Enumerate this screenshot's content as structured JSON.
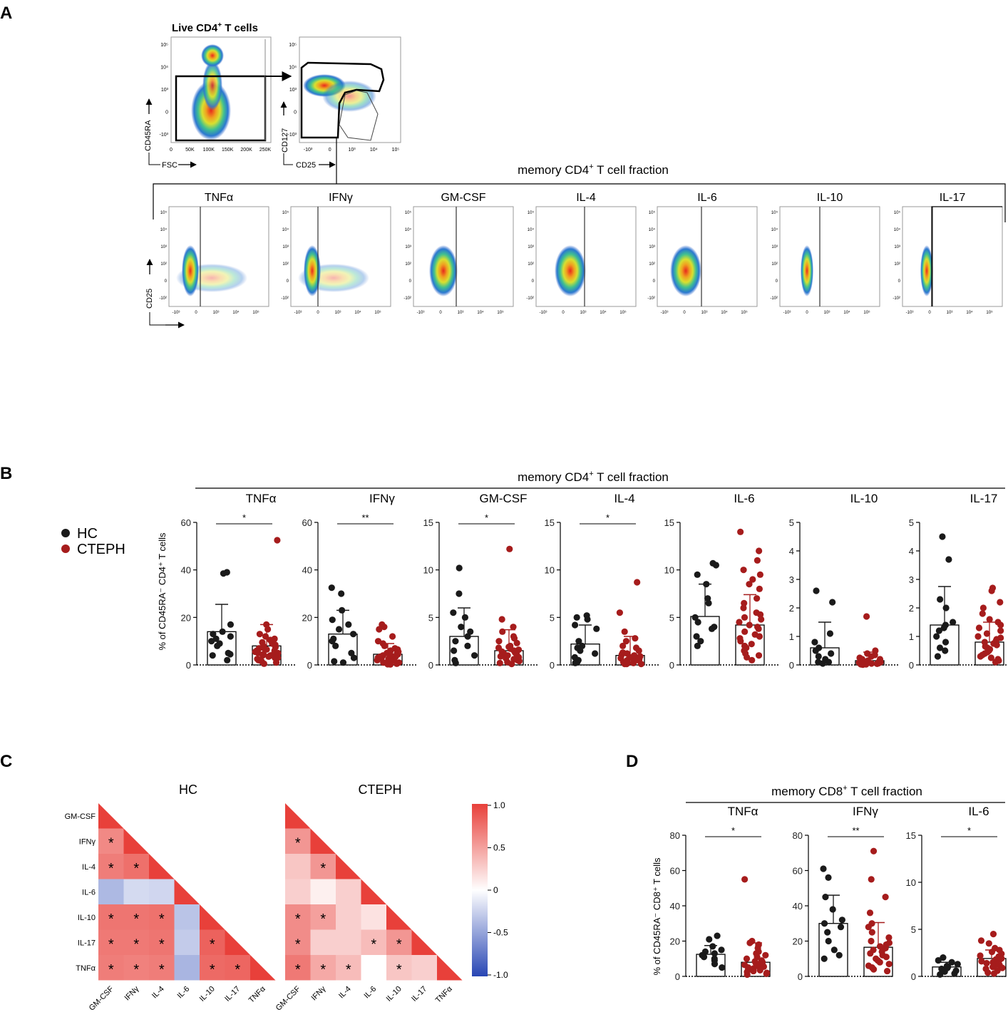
{
  "panels": {
    "A": "A",
    "B": "B",
    "C": "C",
    "D": "D"
  },
  "colors": {
    "hc": "#1a1a1a",
    "cteph": "#a61c1c",
    "heat_pos": "#e8403a",
    "heat_neg": "#2846b4",
    "heat_mid": "#ffffff"
  },
  "panelA": {
    "title": "Live CD4",
    "title_sup": "+",
    "title_suffix": " T cells",
    "plot1": {
      "y_label": "CD45RA",
      "x_label": "FSC",
      "x_ticks": [
        "0",
        "50K",
        "100K",
        "150K",
        "200K",
        "250K"
      ],
      "y_ticks": [
        "10⁵",
        "10⁴",
        "10³",
        "0",
        "-10³"
      ]
    },
    "plot2": {
      "y_label": "CD127",
      "x_label": "CD25",
      "x_ticks": [
        "-10³",
        "0",
        "10³",
        "10⁴",
        "10⁵"
      ],
      "y_ticks": [
        "10⁵",
        "10⁴",
        "10³",
        "0",
        "-10³"
      ]
    },
    "fraction_title": "memory CD4",
    "fraction_sup": "+",
    "fraction_suffix": " T cell fraction",
    "y_label": "CD25",
    "x_ticks": [
      "-10³",
      "0",
      "10³",
      "10⁴",
      "10⁵"
    ],
    "y_ticks": [
      "10⁵",
      "10⁴",
      "10³",
      "10²",
      "0",
      "-10²"
    ],
    "cytokines": [
      "TNFα",
      "IFNγ",
      "GM-CSF",
      "IL-4",
      "IL-6",
      "IL-10",
      "IL-17"
    ]
  },
  "legend": {
    "hc": "HC",
    "cteph": "CTEPH"
  },
  "panelB": {
    "fraction_title": "memory CD4",
    "fraction_sup": "+",
    "fraction_suffix": " T cell fraction",
    "y_label": "% of CD45RA⁻ CD4⁺ T cells"
  },
  "panelC": {
    "hc_title": "HC",
    "cteph_title": "CTEPH",
    "labels": [
      "GM-CSF",
      "IFNγ",
      "IL-4",
      "IL-6",
      "IL-10",
      "IL-17",
      "TNFα"
    ],
    "colorbar_ticks": [
      "1.0",
      "0.5",
      "0",
      "-0.5",
      "-1.0"
    ]
  },
  "panelD": {
    "fraction_title": "memory CD8",
    "fraction_sup": "+",
    "fraction_suffix": " T cell fraction",
    "y_label": "% of CD45RA⁻ CD8⁺ T cells"
  },
  "chart_data": [
    {
      "type": "bar",
      "panel": "B",
      "title": "memory CD4+ T cell fraction",
      "ylabel": "% of CD45RA- CD4+ T cells",
      "groups": [
        "HC",
        "CTEPH"
      ],
      "subplots": [
        {
          "title": "TNFα",
          "ylim": [
            0,
            60
          ],
          "ticks": [
            0,
            20,
            40,
            60
          ],
          "sig": "*",
          "hc": {
            "mean": 14,
            "sd": 11.5
          },
          "cteph": {
            "mean": 8,
            "sd": 9
          },
          "hc_points": [
            39,
            38.5,
            17,
            14,
            13,
            12,
            11,
            10,
            9,
            8,
            5,
            4.5,
            4,
            2
          ],
          "cteph_points": [
            52.5,
            17,
            15,
            13,
            12,
            11,
            10.5,
            10,
            9.5,
            9,
            8.5,
            8,
            7.5,
            7,
            7,
            6.5,
            6,
            6,
            5.5,
            5,
            5,
            4.5,
            4.5,
            4,
            4,
            3.5,
            3,
            3,
            2.5,
            2,
            2,
            1.5,
            1,
            0.5
          ]
        },
        {
          "title": "IFNγ",
          "ylim": [
            0,
            60
          ],
          "ticks": [
            0,
            20,
            40,
            60
          ],
          "sig": "**",
          "hc": {
            "mean": 13,
            "sd": 10
          },
          "cteph": {
            "mean": 4.5,
            "sd": 4.5
          },
          "hc_points": [
            32.5,
            30,
            23,
            19,
            17,
            15,
            13,
            11,
            10,
            8,
            5,
            3,
            1.5,
            1
          ],
          "cteph_points": [
            17,
            16,
            15,
            12,
            10,
            9,
            8,
            7,
            6.5,
            6,
            5.5,
            5,
            5,
            4.5,
            4,
            4,
            3.5,
            3.5,
            3,
            3,
            2.5,
            2.5,
            2,
            2,
            1.5,
            1.5,
            1,
            1,
            0.5,
            0.5,
            0.3,
            0.2
          ]
        },
        {
          "title": "GM-CSF",
          "ylim": [
            0,
            15
          ],
          "ticks": [
            0,
            5,
            10,
            15
          ],
          "sig": "*",
          "hc": {
            "mean": 3,
            "sd": 3
          },
          "cteph": {
            "mean": 1.5,
            "sd": 2.2
          },
          "hc_points": [
            10.2,
            7.5,
            5.5,
            5,
            4,
            3.5,
            3,
            2.5,
            2,
            1.5,
            1,
            0.5,
            0.2
          ],
          "cteph_points": [
            12.2,
            4.8,
            4,
            3.5,
            3,
            2.8,
            2.5,
            2.3,
            2,
            1.9,
            1.8,
            1.7,
            1.6,
            1.5,
            1.4,
            1.3,
            1.2,
            1.1,
            1,
            0.9,
            0.8,
            0.7,
            0.6,
            0.5,
            0.4,
            0.3,
            0.2,
            0.1
          ]
        },
        {
          "title": "IL-4",
          "ylim": [
            0,
            15
          ],
          "ticks": [
            0,
            5,
            10,
            15
          ],
          "sig": "*",
          "hc": {
            "mean": 2.2,
            "sd": 2
          },
          "cteph": {
            "mean": 1,
            "sd": 2
          },
          "hc_points": [
            5.2,
            5,
            4.8,
            4.2,
            3.8,
            2.5,
            2,
            1.8,
            1.5,
            1.2,
            0.8,
            0.5,
            0.3,
            0.2
          ],
          "cteph_points": [
            8.7,
            5.5,
            3.5,
            2.8,
            2.5,
            2,
            1.8,
            1.5,
            1.3,
            1.2,
            1.1,
            1,
            0.9,
            0.8,
            0.7,
            0.6,
            0.5,
            0.5,
            0.4,
            0.3,
            0.3,
            0.2,
            0.2,
            0.1,
            0.1,
            0.1
          ]
        },
        {
          "title": "IL-6",
          "ylim": [
            0,
            15
          ],
          "ticks": [
            0,
            5,
            10,
            15
          ],
          "sig": "",
          "hc": {
            "mean": 5.1,
            "sd": 3.4
          },
          "cteph": {
            "mean": 4.2,
            "sd": 3.2
          },
          "hc_points": [
            10.7,
            10.5,
            9.5,
            8.5,
            7,
            6.5,
            5,
            4.5,
            4,
            3.8,
            3,
            2.5,
            2
          ],
          "cteph_points": [
            14,
            12,
            11,
            10,
            9.5,
            9,
            8.5,
            8,
            7,
            6.5,
            6,
            5.5,
            5.3,
            5,
            4.8,
            4.5,
            4.2,
            4,
            3.8,
            3.5,
            3.2,
            3,
            2.8,
            2.5,
            2.2,
            2,
            1.8,
            1.5,
            1.2,
            1,
            0.8,
            0.5
          ]
        },
        {
          "title": "IL-10",
          "ylim": [
            0,
            5
          ],
          "ticks": [
            0,
            1,
            2,
            3,
            4,
            5
          ],
          "sig": "",
          "hc": {
            "mean": 0.6,
            "sd": 0.9
          },
          "cteph": {
            "mean": 0.15,
            "sd": 0.3
          },
          "hc_points": [
            2.6,
            2.2,
            1.1,
            0.8,
            0.6,
            0.5,
            0.4,
            0.3,
            0.2,
            0.1,
            0.1,
            0.05
          ],
          "cteph_points": [
            1.7,
            0.5,
            0.4,
            0.35,
            0.3,
            0.25,
            0.2,
            0.2,
            0.15,
            0.15,
            0.1,
            0.1,
            0.1,
            0.08,
            0.06,
            0.05,
            0.05,
            0.04,
            0.03,
            0.02,
            0.02,
            0.01
          ]
        },
        {
          "title": "IL-17",
          "ylim": [
            0,
            5
          ],
          "ticks": [
            0,
            1,
            2,
            3,
            4,
            5
          ],
          "sig": "",
          "hc": {
            "mean": 1.4,
            "sd": 1.35
          },
          "cteph": {
            "mean": 0.8,
            "sd": 0.7
          },
          "hc_points": [
            4.5,
            3.7,
            2.3,
            2,
            1.5,
            1.4,
            1.3,
            1.2,
            1,
            0.8,
            0.6,
            0.5,
            0.3
          ],
          "cteph_points": [
            2.7,
            2.6,
            2.2,
            2,
            1.8,
            1.6,
            1.5,
            1.4,
            1.3,
            1.2,
            1.1,
            1,
            0.95,
            0.9,
            0.85,
            0.8,
            0.75,
            0.7,
            0.65,
            0.6,
            0.55,
            0.5,
            0.45,
            0.4,
            0.35,
            0.3,
            0.25,
            0.2,
            0.15,
            0.1
          ]
        }
      ]
    },
    {
      "type": "heatmap",
      "panel": "C",
      "labels": [
        "GM-CSF",
        "IFNγ",
        "IL-4",
        "IL-6",
        "IL-10",
        "IL-17",
        "TNFα"
      ],
      "range": [
        -1,
        1
      ],
      "hc": [
        [
          0.62,
          0.68,
          -0.38,
          0.72,
          0.7,
          0.68
        ],
        [
          0.75,
          -0.2,
          0.72,
          0.7,
          0.66
        ],
        [
          -0.22,
          0.74,
          0.72,
          0.68
        ],
        [
          -0.32,
          -0.28,
          -0.4
        ],
        [
          0.82,
          0.78
        ],
        [
          0.8
        ]
      ],
      "hc_sig": [
        [
          true,
          true,
          false,
          true,
          true,
          true
        ],
        [
          true,
          false,
          true,
          true,
          true
        ],
        [
          false,
          true,
          true,
          true
        ],
        [
          false,
          false,
          false
        ],
        [
          true,
          true
        ],
        [
          true
        ]
      ],
      "cteph": [
        [
          0.35,
          0.2,
          0.6,
          0.6,
          0.7
        ],
        [
          0.08,
          0.25,
          0.2,
          0.35
        ],
        [
          0.2,
          0.2,
          0.25
        ],
        [
          0.15,
          0.1,
          0.0
        ],
        [
          0.55,
          0.6
        ],
        [
          0.25
        ]
      ],
      "cteph_gm": [
        0.55,
        0.3,
        0.25
      ],
      "cteph_sig_gm": [
        true,
        false,
        false
      ],
      "cteph_sig": [
        [
          true,
          false,
          true,
          true,
          true
        ],
        [
          true,
          false,
          false,
          true,
          true
        ],
        [
          false,
          false,
          true
        ],
        [
          false,
          true,
          false
        ],
        [
          true,
          true
        ],
        [
          false
        ]
      ]
    },
    {
      "type": "bar",
      "panel": "D",
      "title": "memory CD8+ T cell fraction",
      "ylabel": "% of CD45RA- CD8+ T cells",
      "groups": [
        "HC",
        "CTEPH"
      ],
      "subplots": [
        {
          "title": "TNFα",
          "ylim": [
            0,
            80
          ],
          "ticks": [
            0,
            20,
            40,
            60,
            80
          ],
          "sig": "*",
          "hc": {
            "mean": 12.5,
            "sd": 5
          },
          "cteph": {
            "mean": 8,
            "sd": 11
          },
          "hc_points": [
            23,
            21,
            17,
            15,
            14,
            13,
            12,
            11,
            10,
            9,
            7,
            5
          ],
          "cteph_points": [
            55,
            20,
            19,
            18,
            16,
            14,
            13,
            12,
            11,
            10,
            9,
            8.5,
            8,
            7.5,
            7,
            6.5,
            6,
            5.5,
            5,
            4.5,
            4,
            3.5,
            3,
            2.5,
            2,
            1.5,
            1
          ]
        },
        {
          "title": "IFNγ",
          "ylim": [
            0,
            80
          ],
          "ticks": [
            0,
            20,
            40,
            60,
            80
          ],
          "sig": "**",
          "hc": {
            "mean": 30,
            "sd": 16
          },
          "cteph": {
            "mean": 16.5,
            "sd": 14
          },
          "hc_points": [
            61,
            56,
            45,
            38,
            32,
            30,
            28,
            25,
            20,
            15,
            12,
            10
          ],
          "cteph_points": [
            71,
            55,
            45,
            36,
            30,
            28,
            25,
            22,
            20,
            19,
            18,
            17,
            16,
            15,
            14,
            13,
            12,
            11,
            10,
            9,
            8,
            7,
            6,
            5,
            4,
            3
          ]
        },
        {
          "title": "IL-6",
          "ylim": [
            0,
            15
          ],
          "ticks": [
            0,
            5,
            10,
            15
          ],
          "sig": "*",
          "hc": {
            "mean": 1,
            "sd": 0.5
          },
          "cteph": {
            "mean": 1.9,
            "sd": 0.9
          },
          "hc_points": [
            2,
            1.7,
            1.5,
            1.3,
            1.1,
            1,
            0.9,
            0.8,
            0.6,
            0.5,
            0.3,
            0.2
          ],
          "cteph_points": [
            4.5,
            3.8,
            3.5,
            3,
            2.8,
            2.6,
            2.4,
            2.2,
            2.1,
            2,
            1.9,
            1.8,
            1.7,
            1.6,
            1.5,
            1.4,
            1.3,
            1.2,
            1.1,
            1,
            0.9,
            0.8,
            0.6,
            0.4,
            0.3
          ]
        }
      ]
    }
  ]
}
